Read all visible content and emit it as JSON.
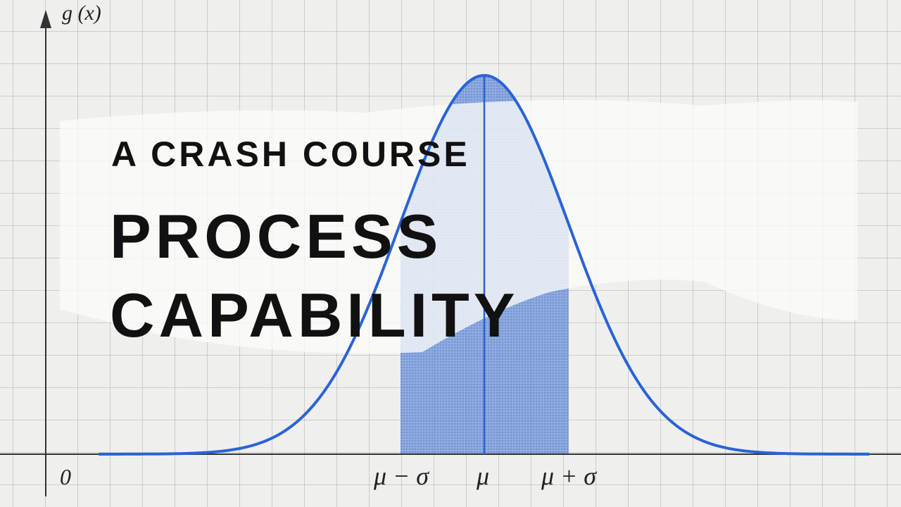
{
  "axis": {
    "y_label": "g (x)",
    "origin_label": "0",
    "x_labels": [
      "μ − σ",
      "μ",
      "μ + σ"
    ]
  },
  "headline": {
    "kicker": "A CRASH COURSE",
    "title_lines": [
      "PROCESS",
      "CAPABILITY"
    ]
  }
}
